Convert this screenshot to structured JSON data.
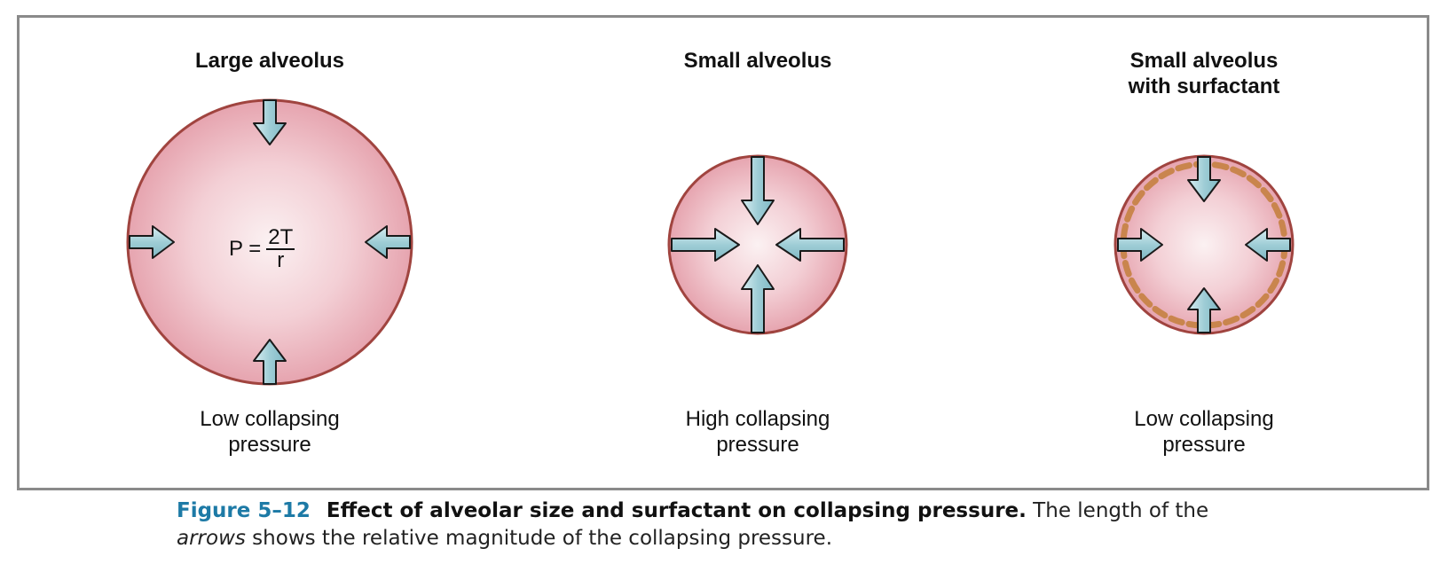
{
  "panels": [
    {
      "title_lines": [
        "Large alveolus"
      ],
      "formula": {
        "lhs": "P =",
        "numerator": "2T",
        "denominator": "r"
      },
      "label_lines": [
        "Low collapsing",
        "pressure"
      ]
    },
    {
      "title_lines": [
        "Small alveolus"
      ],
      "label_lines": [
        "High collapsing",
        "pressure"
      ]
    },
    {
      "title_lines": [
        "Small alveolus",
        "with surfactant"
      ],
      "label_lines": [
        "Low collapsing",
        "pressure"
      ]
    }
  ],
  "caption": {
    "figure_number": "Figure 5–12",
    "title": "Effect of alveolar size and surfactant on collapsing pressure.",
    "text_before_em": " The length of the",
    "em_word": "arrows",
    "text_after_em": " shows the relative magnitude of the collapsing pressure."
  },
  "colors": {
    "frame": "#8a8a8a",
    "alveolus_outline": "#a0443f",
    "alveolus_fill_center": "#fbf1f2",
    "alveolus_fill_edge": "#e8aab4",
    "arrow_fill": "#a9d4dc",
    "arrow_outline": "#1a1a1a",
    "surfactant": "#c9854d",
    "figure_number": "#1d7aa6"
  }
}
